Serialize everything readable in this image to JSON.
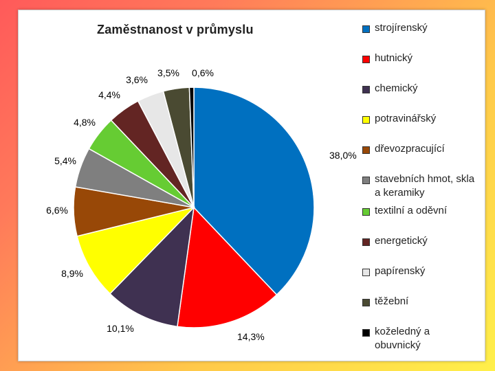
{
  "chart_data": {
    "type": "pie",
    "title": "Zaměstnanost v průmyslu",
    "legend_position": "right",
    "slices": [
      {
        "label": "strojírenský",
        "value": 38.0,
        "value_label": "38,0%",
        "color": "#0070c0"
      },
      {
        "label": "hutnický",
        "value": 14.3,
        "value_label": "14,3%",
        "color": "#ff0000"
      },
      {
        "label": "chemický",
        "value": 10.1,
        "value_label": "10,1%",
        "color": "#3f3151"
      },
      {
        "label": "potravinářský",
        "value": 8.9,
        "value_label": "8,9%",
        "color": "#ffff00"
      },
      {
        "label": "dřevozpracující",
        "value": 6.6,
        "value_label": "6,6%",
        "color": "#984807"
      },
      {
        "label": "stavebních hmot, skla a keramiky",
        "value": 5.4,
        "value_label": "5,4%",
        "color": "#7f7f7f"
      },
      {
        "label": "textilní a oděvní",
        "value": 4.8,
        "value_label": "4,8%",
        "color": "#66cc33"
      },
      {
        "label": "energetický",
        "value": 4.4,
        "value_label": "4,4%",
        "color": "#632523"
      },
      {
        "label": "papírenský",
        "value": 3.6,
        "value_label": "3,6%",
        "color": "#e7e7e7"
      },
      {
        "label": "těžební",
        "value": 3.5,
        "value_label": "3,5%",
        "color": "#4a4a32"
      },
      {
        "label": "koželedný a obuvnický",
        "value": 0.6,
        "value_label": "0,6%",
        "color": "#000000"
      }
    ]
  }
}
